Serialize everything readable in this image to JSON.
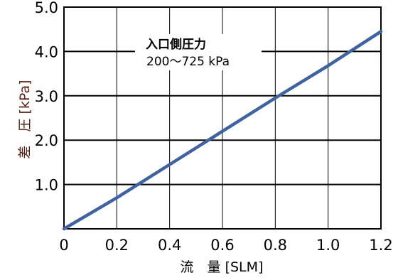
{
  "chart_data": {
    "type": "line",
    "title": "",
    "xlabel": "流　量 [SLM]",
    "ylabel": "差　圧 [kPa]",
    "xlim": [
      0,
      1.2
    ],
    "ylim": [
      0,
      5.0
    ],
    "x_ticks": [
      "0",
      "0.2",
      "0.4",
      "0.6",
      "0.8",
      "1.0",
      "1.2"
    ],
    "y_ticks": [
      "1.0",
      "2.0",
      "3.0",
      "4.0",
      "5.0"
    ],
    "grid": "horizontal and vertical",
    "series": [
      {
        "color": "#3e63a0",
        "x": [
          0,
          0.2,
          0.4,
          0.6,
          0.8,
          1.0,
          1.2
        ],
        "y": [
          0,
          0.7,
          1.45,
          2.2,
          2.95,
          3.68,
          4.45
        ]
      }
    ],
    "annotation": {
      "line1": "入口側圧力",
      "line2": "200～725 kPa"
    }
  }
}
